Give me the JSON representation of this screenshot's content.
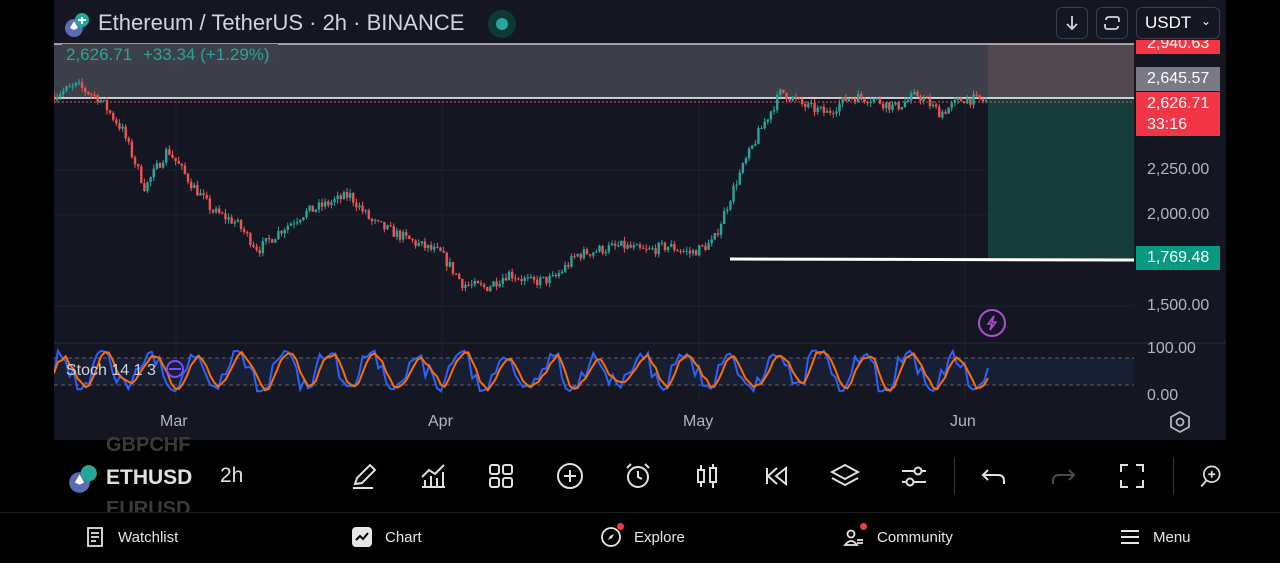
{
  "header": {
    "title": "Ethereum / TetherUS · 2h · BINANCE",
    "currency": "USDT"
  },
  "legend": {
    "price": "2,626.71",
    "change": "+33.34 (+1.29%)"
  },
  "price_axis": {
    "top_partial": "2,940.63",
    "marker": "2,645.57",
    "last": "2,626.71",
    "countdown": "33:16",
    "l2250": "2,250.00",
    "l2000": "2,000.00",
    "level": "1,769.48",
    "l1500": "1,500.00",
    "stoch_100": "100.00",
    "stoch_0": "0.00"
  },
  "indicator": {
    "label": "Stoch 14 1 3"
  },
  "time_axis": [
    "Mar",
    "Apr",
    "May",
    "Jun"
  ],
  "toolbar": {
    "symbol": "ETHUSD",
    "interval": "2h",
    "ghost_above": "GBPCHF",
    "ghost_below": "EURUSD"
  },
  "nav": {
    "watchlist": "Watchlist",
    "chart": "Chart",
    "explore": "Explore",
    "community": "Community",
    "menu": "Menu"
  },
  "colors": {
    "up": "#26a69a",
    "down": "#ef5350",
    "background": "#141722",
    "stoch_k": "#2962ff",
    "stoch_d": "#ff6d00"
  },
  "chart_data": {
    "type": "candlestick",
    "symbol": "ETHUSDT",
    "interval": "2h",
    "y_axis_ticks": [
      1500,
      2000,
      2250
    ],
    "months": [
      "Mar",
      "Apr",
      "May",
      "Jun"
    ],
    "anchor_closes": [
      2660,
      2710,
      2640,
      2470,
      2150,
      2360,
      2180,
      2020,
      1960,
      1810,
      1920,
      2010,
      2060,
      2110,
      1960,
      1900,
      1840,
      1790,
      1620,
      1600,
      1680,
      1630,
      1650,
      1780,
      1810,
      1830,
      1800,
      1830,
      1790,
      1850,
      2180,
      2450,
      2680,
      2600,
      2560,
      2650,
      2640,
      2590,
      2660,
      2560,
      2640,
      2626
    ],
    "last_price": 2626.71,
    "horizontal_level": 1769.48,
    "position": {
      "stop": 2940.63,
      "target": 1769.48,
      "entry": 2626.71
    },
    "stochastic": {
      "k": 14,
      "smooth": 1,
      "d": 3,
      "upper": 80,
      "lower": 20
    }
  }
}
